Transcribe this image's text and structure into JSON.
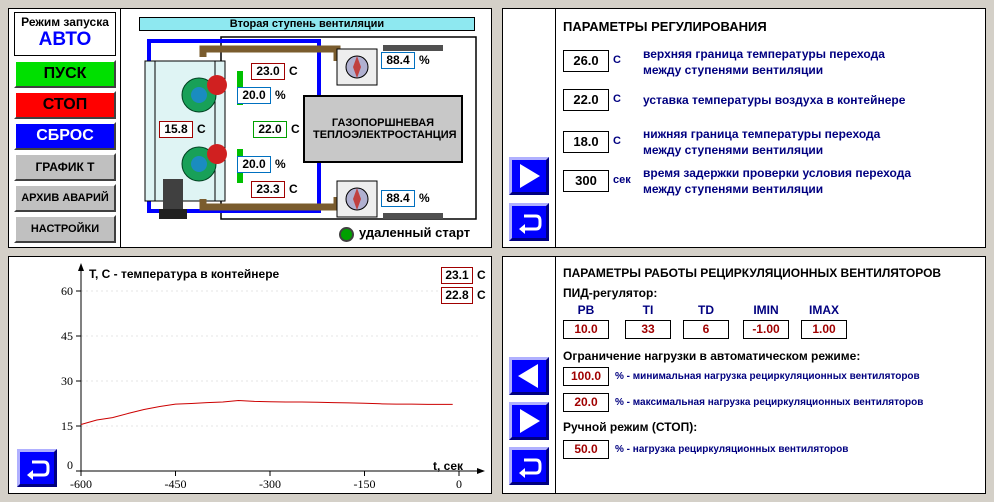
{
  "mode": {
    "title": "Режим запуска",
    "value": "АВТО"
  },
  "buttons": {
    "start": "ПУСК",
    "stop": "СТОП",
    "reset": "СБРОС",
    "graph": "ГРАФИК Т",
    "alarms": "АРХИВ АВАРИЙ",
    "settings": "НАСТРОЙКИ"
  },
  "scheme": {
    "stage_title": "Вторая ступень вентиляции",
    "plant_label": "ГАЗОПОРШНЕВАЯ ТЕПЛОЭЛЕКТРОСТАНЦИЯ",
    "temp_top": "23.0",
    "temp_mid": "22.0",
    "temp_bottom": "23.3",
    "temp_left": "15.8",
    "vent1_pct": "20.0",
    "vent2_pct": "20.0",
    "fan_top_pct": "88.4",
    "fan_bottom_pct": "88.4",
    "unit_c": "С",
    "unit_pct": "%",
    "remote_start": "удаленный старт"
  },
  "regulation": {
    "title": "ПАРАМЕТРЫ РЕГУЛИРОВАНИЯ",
    "params": [
      {
        "value": "26.0",
        "unit": "С",
        "line1": "верхняя граница температуры перехода",
        "line2": "между  ступенями вентиляции"
      },
      {
        "value": "22.0",
        "unit": "С",
        "line1": "уставка температуры воздуха в контейнере",
        "line2": ""
      },
      {
        "value": "18.0",
        "unit": "С",
        "line1": "нижняя граница температуры перехода",
        "line2": "между ступенями вентиляции"
      },
      {
        "value": "300",
        "unit": "сек",
        "line1": "время задержки проверки условия перехода",
        "line2": "между ступенями вентиляции"
      }
    ]
  },
  "chart": {
    "ylabel": "T, С - температура в контейнере",
    "xlabel": "t, сек",
    "current1": "23.1",
    "current2": "22.8",
    "unit": "С",
    "ytick_labels": [
      "60",
      "45",
      "30",
      "15",
      "0"
    ],
    "xtick_labels": [
      "-600",
      "-450",
      "-300",
      "-150",
      "0"
    ]
  },
  "chart_data": {
    "type": "line",
    "xlabel": "t, сек",
    "ylabel": "T, С - температура в контейнере",
    "xlim": [
      -600,
      0
    ],
    "ylim": [
      0,
      60
    ],
    "series": [
      {
        "color": "#cc0000",
        "x": [
          -600,
          -575,
          -550,
          -525,
          -500,
          -475,
          -450,
          -425,
          -400,
          -375,
          -350,
          -325,
          -300,
          -275,
          -250,
          -225,
          -200,
          -175,
          -150,
          -125,
          -100,
          -75,
          -50,
          -25,
          -10
        ],
        "y": [
          15.5,
          17.0,
          17.8,
          19.2,
          20.5,
          21.5,
          22.3,
          22.5,
          22.8,
          23.0,
          23.5,
          23.2,
          23.1,
          23.0,
          23.0,
          22.9,
          22.8,
          22.7,
          22.6,
          22.4,
          22.3,
          22.3,
          22.2,
          22.2,
          22.2
        ]
      }
    ]
  },
  "recirc": {
    "title": "ПАРАМЕТРЫ РАБОТЫ РЕЦИРКУЛЯЦИОННЫХ ВЕНТИЛЯТОРОВ",
    "pid_label": "ПИД-регулятор:",
    "pid_headers": [
      "PB",
      "TI",
      "TD",
      "IMIN",
      "IMAX"
    ],
    "pid_values": [
      "10.0",
      "33",
      "6",
      "-1.00",
      "1.00"
    ],
    "limit_label": "Ограничение нагрузки в автоматическом режиме:",
    "min_value": "100.0",
    "min_text": "% - минимальная нагрузка рециркуляционных вентиляторов",
    "max_value": "20.0",
    "max_text": "% - максимальная нагрузка рециркуляционных вентиляторов",
    "manual_label": "Ручной режим (СТОП):",
    "manual_value": "50.0",
    "manual_text": "% - нагрузка рециркуляционных вентиляторов"
  },
  "colors": {
    "accent_blue": "#0000ff",
    "text_blue": "#000080",
    "alarm_red": "#a00000",
    "pipe_brown": "#7a5c2e"
  }
}
